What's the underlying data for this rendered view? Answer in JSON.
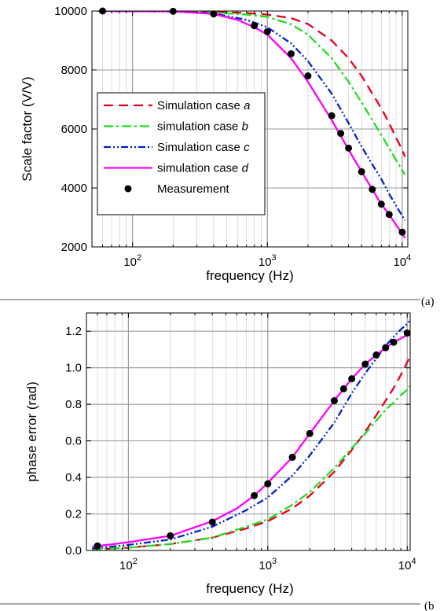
{
  "chart_data": [
    {
      "type": "line",
      "panel_label": "(a)",
      "xlabel": "frequency (Hz)",
      "ylabel": "Scale factor (V/V)",
      "x_scale": "log",
      "xlim": [
        50,
        11000
      ],
      "ylim": [
        2000,
        10000
      ],
      "x_ticks": [
        {
          "value": 100,
          "base": "10",
          "exp": "2"
        },
        {
          "value": 1000,
          "base": "10",
          "exp": "3"
        },
        {
          "value": 10000,
          "base": "10",
          "exp": "4"
        }
      ],
      "y_ticks": [
        2000,
        4000,
        6000,
        8000,
        10000
      ],
      "grid": true,
      "legend_position": "bottom-left",
      "series": [
        {
          "name": "Simulation case",
          "name_suffix": "a",
          "color": "#e8001c",
          "dash": "12,7",
          "points": [
            [
              55,
              10000
            ],
            [
              200,
              9990
            ],
            [
              400,
              9970
            ],
            [
              700,
              9930
            ],
            [
              1000,
              9880
            ],
            [
              1500,
              9760
            ],
            [
              2000,
              9560
            ],
            [
              3000,
              9000
            ],
            [
              4000,
              8400
            ],
            [
              5000,
              7800
            ],
            [
              6000,
              7200
            ],
            [
              7000,
              6700
            ],
            [
              8000,
              6200
            ],
            [
              9000,
              5700
            ],
            [
              10000,
              5300
            ],
            [
              10500,
              5050
            ]
          ]
        },
        {
          "name": "simulation case",
          "name_suffix": "b",
          "color": "#22dd22",
          "dash": "12,4,3,4",
          "points": [
            [
              55,
              10000
            ],
            [
              200,
              9990
            ],
            [
              400,
              9950
            ],
            [
              700,
              9880
            ],
            [
              1000,
              9800
            ],
            [
              1500,
              9550
            ],
            [
              2000,
              9200
            ],
            [
              3000,
              8400
            ],
            [
              4000,
              7600
            ],
            [
              5000,
              6900
            ],
            [
              6000,
              6300
            ],
            [
              7000,
              5800
            ],
            [
              8000,
              5350
            ],
            [
              9000,
              4950
            ],
            [
              10000,
              4600
            ],
            [
              10500,
              4450
            ]
          ]
        },
        {
          "name": "Simulation case",
          "name_suffix": "c",
          "color": "#0022cc",
          "dash": "9,3,2,3,2,3",
          "points": [
            [
              55,
              10000
            ],
            [
              200,
              9980
            ],
            [
              400,
              9920
            ],
            [
              700,
              9700
            ],
            [
              1000,
              9450
            ],
            [
              1500,
              8900
            ],
            [
              2000,
              8300
            ],
            [
              3000,
              7200
            ],
            [
              4000,
              6200
            ],
            [
              5000,
              5400
            ],
            [
              6000,
              4800
            ],
            [
              7000,
              4300
            ],
            [
              8000,
              3800
            ],
            [
              9000,
              3400
            ],
            [
              10000,
              3050
            ],
            [
              10500,
              2900
            ]
          ]
        },
        {
          "name": "simulation case",
          "name_suffix": "d",
          "color": "#ff00ff",
          "dash": "",
          "points": [
            [
              55,
              10000
            ],
            [
              200,
              9990
            ],
            [
              400,
              9900
            ],
            [
              600,
              9700
            ],
            [
              800,
              9450
            ],
            [
              1000,
              9200
            ],
            [
              1500,
              8400
            ],
            [
              2000,
              7600
            ],
            [
              3000,
              6300
            ],
            [
              4000,
              5300
            ],
            [
              5000,
              4550
            ],
            [
              6000,
              3950
            ],
            [
              7000,
              3450
            ],
            [
              8000,
              3100
            ],
            [
              9000,
              2750
            ],
            [
              10000,
              2450
            ],
            [
              10500,
              2300
            ]
          ]
        },
        {
          "name": "Measurement",
          "name_suffix": "",
          "color": "#000000",
          "marker": "circle",
          "points": [
            [
              60,
              10000
            ],
            [
              200,
              9990
            ],
            [
              400,
              9900
            ],
            [
              800,
              9500
            ],
            [
              1000,
              9300
            ],
            [
              1500,
              8550
            ],
            [
              2000,
              7800
            ],
            [
              3000,
              6450
            ],
            [
              3500,
              5850
            ],
            [
              4000,
              5350
            ],
            [
              5000,
              4550
            ],
            [
              6000,
              3950
            ],
            [
              7000,
              3450
            ],
            [
              8000,
              3100
            ],
            [
              10000,
              2500
            ]
          ]
        }
      ]
    },
    {
      "type": "line",
      "panel_label": "(b",
      "xlabel": "frequency (Hz)",
      "ylabel": "phase error (rad)",
      "x_scale": "log",
      "xlim": [
        50,
        10500
      ],
      "ylim": [
        0,
        1.3
      ],
      "x_ticks": [
        {
          "value": 100,
          "base": "10",
          "exp": "2"
        },
        {
          "value": 1000,
          "base": "10",
          "exp": "3"
        },
        {
          "value": 10000,
          "base": "10",
          "exp": "4"
        }
      ],
      "y_ticks": [
        "0.0",
        "0.2",
        "0.4",
        "0.6",
        "0.8",
        "1.0",
        "1.2"
      ],
      "grid": true,
      "series": [
        {
          "color": "#e8001c",
          "dash": "12,7",
          "points": [
            [
              55,
              0.005
            ],
            [
              100,
              0.015
            ],
            [
              200,
              0.035
            ],
            [
              400,
              0.07
            ],
            [
              700,
              0.12
            ],
            [
              1000,
              0.16
            ],
            [
              1500,
              0.23
            ],
            [
              2000,
              0.3
            ],
            [
              3000,
              0.43
            ],
            [
              4000,
              0.55
            ],
            [
              5000,
              0.65
            ],
            [
              6000,
              0.74
            ],
            [
              7000,
              0.82
            ],
            [
              8000,
              0.89
            ],
            [
              9000,
              0.96
            ],
            [
              10000,
              1.03
            ],
            [
              10500,
              1.06
            ]
          ]
        },
        {
          "color": "#22dd22",
          "dash": "12,4,3,4",
          "points": [
            [
              55,
              0.005
            ],
            [
              100,
              0.015
            ],
            [
              200,
              0.035
            ],
            [
              400,
              0.07
            ],
            [
              700,
              0.13
            ],
            [
              1000,
              0.17
            ],
            [
              1500,
              0.25
            ],
            [
              2000,
              0.32
            ],
            [
              3000,
              0.45
            ],
            [
              4000,
              0.56
            ],
            [
              5000,
              0.64
            ],
            [
              6000,
              0.71
            ],
            [
              7000,
              0.77
            ],
            [
              8000,
              0.81
            ],
            [
              9000,
              0.85
            ],
            [
              10000,
              0.88
            ],
            [
              10500,
              0.9
            ]
          ]
        },
        {
          "color": "#0022cc",
          "dash": "9,3,2,3,2,3",
          "points": [
            [
              55,
              0.01
            ],
            [
              100,
              0.03
            ],
            [
              200,
              0.06
            ],
            [
              400,
              0.13
            ],
            [
              700,
              0.22
            ],
            [
              1000,
              0.29
            ],
            [
              1500,
              0.41
            ],
            [
              2000,
              0.52
            ],
            [
              3000,
              0.7
            ],
            [
              4000,
              0.86
            ],
            [
              5000,
              0.97
            ],
            [
              6000,
              1.05
            ],
            [
              7000,
              1.12
            ],
            [
              8000,
              1.17
            ],
            [
              9000,
              1.21
            ],
            [
              10000,
              1.24
            ],
            [
              10500,
              1.26
            ]
          ]
        },
        {
          "color": "#ff00ff",
          "dash": "",
          "points": [
            [
              55,
              0.02
            ],
            [
              100,
              0.045
            ],
            [
              200,
              0.08
            ],
            [
              400,
              0.16
            ],
            [
              600,
              0.23
            ],
            [
              800,
              0.3
            ],
            [
              1000,
              0.37
            ],
            [
              1500,
              0.51
            ],
            [
              2000,
              0.64
            ],
            [
              3000,
              0.82
            ],
            [
              4000,
              0.94
            ],
            [
              5000,
              1.02
            ],
            [
              6000,
              1.07
            ],
            [
              7000,
              1.11
            ],
            [
              8000,
              1.14
            ],
            [
              9000,
              1.16
            ],
            [
              10000,
              1.18
            ],
            [
              10500,
              1.19
            ]
          ]
        },
        {
          "color": "#000000",
          "marker": "circle",
          "points": [
            [
              60,
              0.025
            ],
            [
              200,
              0.08
            ],
            [
              400,
              0.155
            ],
            [
              800,
              0.3
            ],
            [
              1000,
              0.365
            ],
            [
              1500,
              0.51
            ],
            [
              2000,
              0.64
            ],
            [
              3000,
              0.82
            ],
            [
              3500,
              0.885
            ],
            [
              4000,
              0.94
            ],
            [
              5000,
              1.02
            ],
            [
              6000,
              1.07
            ],
            [
              7000,
              1.11
            ],
            [
              8000,
              1.14
            ],
            [
              10000,
              1.19
            ]
          ]
        }
      ]
    }
  ]
}
